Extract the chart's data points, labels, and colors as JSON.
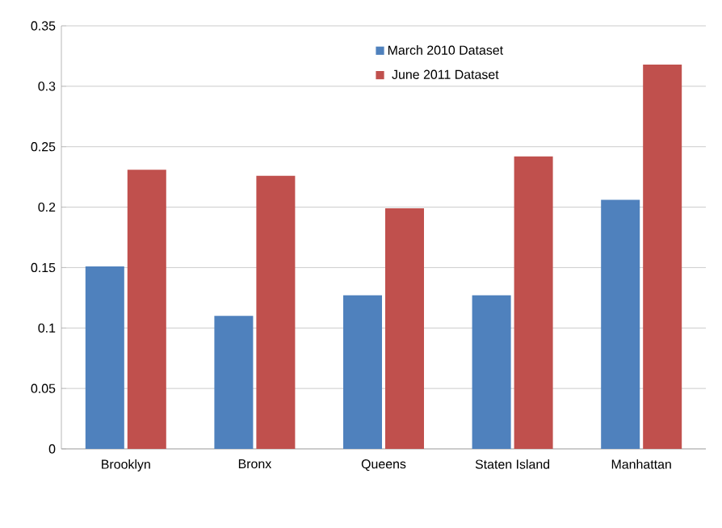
{
  "chart_data": {
    "type": "bar",
    "categories": [
      "Brooklyn",
      "Bronx",
      "Queens",
      "Staten Island",
      "Manhattan"
    ],
    "series": [
      {
        "name": "March 2010 Dataset",
        "color": "#4f81bd",
        "values": [
          0.151,
          0.11,
          0.127,
          0.127,
          0.206
        ]
      },
      {
        "name": "June 2011 Dataset",
        "color": "#c0504d",
        "values": [
          0.231,
          0.226,
          0.199,
          0.242,
          0.318
        ]
      }
    ],
    "ylim": [
      0,
      0.35
    ],
    "yticks": [
      0,
      0.05,
      0.1,
      0.15,
      0.2,
      0.25,
      0.3,
      0.35
    ],
    "grid": "y",
    "legend": "top right"
  }
}
